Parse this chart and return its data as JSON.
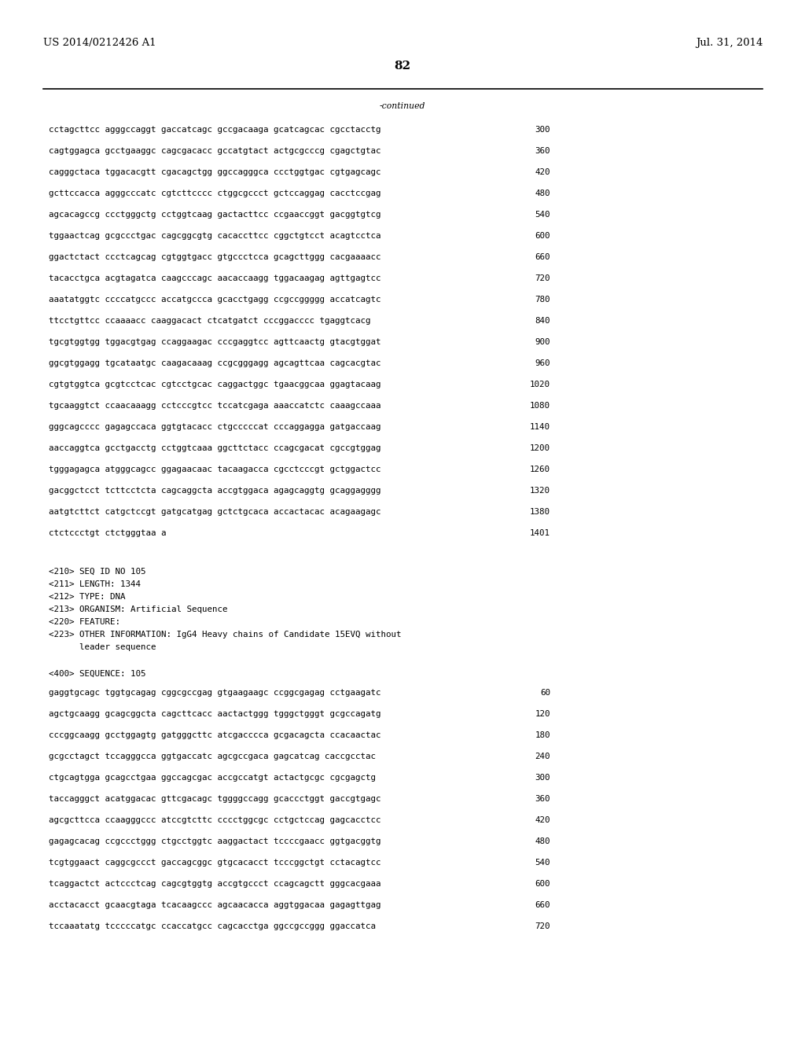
{
  "header_left": "US 2014/0212426 A1",
  "header_right": "Jul. 31, 2014",
  "page_number": "82",
  "continued_label": "-continued",
  "bg_color": "#ffffff",
  "text_color": "#000000",
  "font_size": 7.8,
  "header_font_size": 9.5,
  "page_num_font_size": 11,
  "sequence_lines": [
    [
      "cctagcttcc agggccaggt gaccatcagc gccgacaaga gcatcagcac cgcctacctg",
      "300"
    ],
    [
      "cagtggagca gcctgaaggc cagcgacacc gccatgtact actgcgcccg cgagctgtac",
      "360"
    ],
    [
      "cagggctaca tggacacgtt cgacagctgg ggccagggca ccctggtgac cgtgagcagc",
      "420"
    ],
    [
      "gcttccacca agggcccatc cgtcttcccc ctggcgccct gctccaggag cacctccgag",
      "480"
    ],
    [
      "agcacagccg ccctgggctg cctggtcaag gactacttcc ccgaaccggt gacggtgtcg",
      "540"
    ],
    [
      "tggaactcag gcgccctgac cagcggcgtg cacaccttcc cggctgtcct acagtcctca",
      "600"
    ],
    [
      "ggactctact ccctcagcag cgtggtgacc gtgccctcca gcagcttggg cacgaaaacc",
      "660"
    ],
    [
      "tacacctgca acgtagatca caagcccagc aacaccaagg tggacaagag agttgagtcc",
      "720"
    ],
    [
      "aaatatggtc ccccatgccc accatgccca gcacctgagg ccgccggggg accatcagtc",
      "780"
    ],
    [
      "ttcctgttcc ccaaaacc caaggacact ctcatgatct cccggacccc tgaggtcacg",
      "840"
    ],
    [
      "tgcgtggtgg tggacgtgag ccaggaagac cccgaggtcc agttcaactg gtacgtggat",
      "900"
    ],
    [
      "ggcgtggagg tgcataatgc caagacaaag ccgcgggagg agcagttcaa cagcacgtac",
      "960"
    ],
    [
      "cgtgtggtca gcgtcctcac cgtcctgcac caggactggc tgaacggcaa ggagtacaag",
      "1020"
    ],
    [
      "tgcaaggtct ccaacaaagg cctcccgtcc tccatcgaga aaaccatctc caaagccaaa",
      "1080"
    ],
    [
      "gggcagcccc gagagccaca ggtgtacacc ctgcccccat cccaggagga gatgaccaag",
      "1140"
    ],
    [
      "aaccaggtca gcctgacctg cctggtcaaa ggcttctacc ccagcgacat cgccgtggag",
      "1200"
    ],
    [
      "tgggagagca atgggcagcc ggagaacaac tacaagacca cgcctcccgt gctggactcc",
      "1260"
    ],
    [
      "gacggctcct tcttcctcta cagcaggcta accgtggaca agagcaggtg gcaggagggg",
      "1320"
    ],
    [
      "aatgtcttct catgctccgt gatgcatgag gctctgcaca accactacac acagaagagc",
      "1380"
    ],
    [
      "ctctccctgt ctctgggtaa a",
      "1401"
    ]
  ],
  "metadata_lines": [
    "<210> SEQ ID NO 105",
    "<211> LENGTH: 1344",
    "<212> TYPE: DNA",
    "<213> ORGANISM: Artificial Sequence",
    "<220> FEATURE:",
    "<223> OTHER INFORMATION: IgG4 Heavy chains of Candidate 15EVQ without",
    "      leader sequence"
  ],
  "sequence_label": "<400> SEQUENCE: 105",
  "sequence2_lines": [
    [
      "gaggtgcagc tggtgcagag cggcgccgag gtgaagaagc ccggcgagag cctgaagatc",
      "60"
    ],
    [
      "agctgcaagg gcagcggcta cagcttcacc aactactggg tgggctgggt gcgccagatg",
      "120"
    ],
    [
      "cccggcaagg gcctggagtg gatgggcttc atcgacccca gcgacagcta ccacaactac",
      "180"
    ],
    [
      "gcgcctagct tccagggcca ggtgaccatc agcgccgaca gagcatcag caccgcctac",
      "240"
    ],
    [
      "ctgcagtgga gcagcctgaa ggccagcgac accgccatgt actactgcgc cgcgagctg",
      "300"
    ],
    [
      "taccagggct acatggacac gttcgacagc tggggccagg gcaccctggt gaccgtgagc",
      "360"
    ],
    [
      "agcgcttcca ccaagggccc atccgtcttc cccctggcgc cctgctccag gagcacctcc",
      "420"
    ],
    [
      "gagagcacag ccgccctggg ctgcctggtc aaggactact tccccgaacc ggtgacggtg",
      "480"
    ],
    [
      "tcgtggaact caggcgccct gaccagcggc gtgcacacct tcccggctgt cctacagtcc",
      "540"
    ],
    [
      "tcaggactct actccctcag cagcgtggtg accgtgccct ccagcagctt gggcacgaaa",
      "600"
    ],
    [
      "acctacacct gcaacgtaga tcacaagccc agcaacacca aggtggacaa gagagttgag",
      "660"
    ],
    [
      "tccaaatatg tcccccatgc ccaccatgcc cagcacctga ggccgccggg ggaccatca",
      "720"
    ]
  ]
}
